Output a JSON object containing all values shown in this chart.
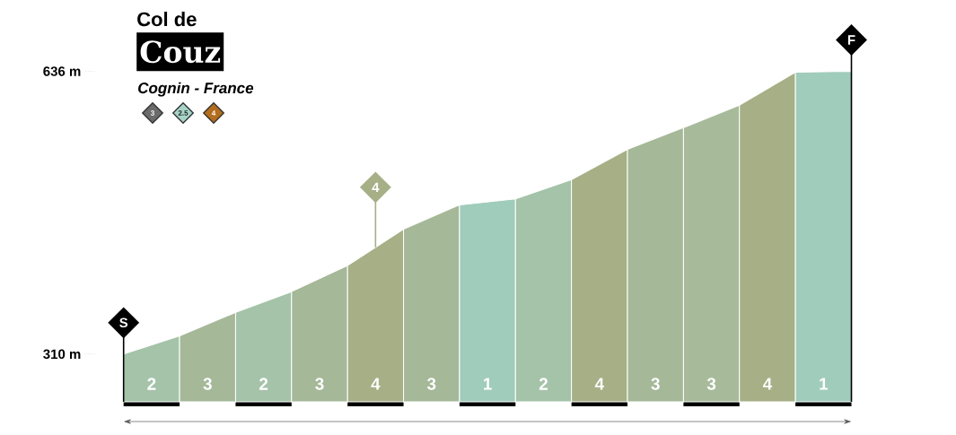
{
  "chart_data": {
    "type": "area",
    "title": "Couz",
    "subtitle": "Cognin - France",
    "categories": [
      null,
      null,
      null,
      null,
      null,
      null,
      null,
      null,
      null,
      null,
      null,
      null,
      null,
      null
    ],
    "ylim": [
      255,
      636
    ],
    "yticks": [
      {
        "value": 310,
        "label": "310 m"
      },
      {
        "value": 636,
        "label": "636 m"
      }
    ],
    "tick_labels": "y",
    "series": [
      {
        "name": "2",
        "color": "#a4c3a8",
        "values": [
          310,
          331,
          null,
          null,
          null,
          null,
          null,
          null,
          null,
          null,
          null,
          null,
          null,
          null
        ]
      },
      {
        "name": "3",
        "color": "#a5b898",
        "values": [
          null,
          331,
          358,
          null,
          null,
          null,
          null,
          null,
          null,
          null,
          null,
          null,
          null,
          null
        ]
      },
      {
        "name": "2",
        "color": "#a4c3a8",
        "values": [
          null,
          null,
          358,
          382,
          null,
          null,
          null,
          null,
          null,
          null,
          null,
          null,
          null,
          null
        ]
      },
      {
        "name": "3",
        "color": "#a5b898",
        "values": [
          null,
          null,
          null,
          382,
          412,
          null,
          null,
          null,
          null,
          null,
          null,
          null,
          null,
          null
        ]
      },
      {
        "name": "4",
        "color": "#a6af86",
        "values": [
          null,
          null,
          null,
          null,
          412,
          454,
          null,
          null,
          null,
          null,
          null,
          null,
          null,
          null
        ]
      },
      {
        "name": "3",
        "color": "#a5b898",
        "values": [
          null,
          null,
          null,
          null,
          null,
          454,
          482,
          null,
          null,
          null,
          null,
          null,
          null,
          null
        ]
      },
      {
        "name": "1",
        "color": "#a0ccbb",
        "values": [
          null,
          null,
          null,
          null,
          null,
          null,
          482,
          489,
          null,
          null,
          null,
          null,
          null,
          null
        ]
      },
      {
        "name": "2",
        "color": "#a4c3a8",
        "values": [
          null,
          null,
          null,
          null,
          null,
          null,
          null,
          489,
          511,
          null,
          null,
          null,
          null,
          null
        ]
      },
      {
        "name": "4",
        "color": "#a6af86",
        "values": [
          null,
          null,
          null,
          null,
          null,
          null,
          null,
          null,
          511,
          546,
          null,
          null,
          null,
          null
        ]
      },
      {
        "name": "3",
        "color": "#a5b898",
        "values": [
          null,
          null,
          null,
          null,
          null,
          null,
          null,
          null,
          null,
          546,
          571,
          null,
          null,
          null
        ]
      },
      {
        "name": "3",
        "color": "#a7bb9b",
        "values": [
          null,
          null,
          null,
          null,
          null,
          null,
          null,
          null,
          null,
          null,
          571,
          597,
          null,
          null
        ]
      },
      {
        "name": "4",
        "color": "#a6af86",
        "values": [
          null,
          null,
          null,
          null,
          null,
          null,
          null,
          null,
          null,
          null,
          null,
          597,
          635,
          null
        ]
      },
      {
        "name": "1",
        "color": "#a0ccbb",
        "values": [
          null,
          null,
          null,
          null,
          null,
          null,
          null,
          null,
          null,
          null,
          null,
          null,
          635,
          636
        ]
      }
    ],
    "annotations": [
      "Col de",
      "3",
      "2.5",
      "4",
      {
        "text": "S",
        "y": 310
      },
      {
        "text": "4",
        "y": 433
      },
      {
        "text": "F",
        "y": 636
      }
    ]
  }
}
